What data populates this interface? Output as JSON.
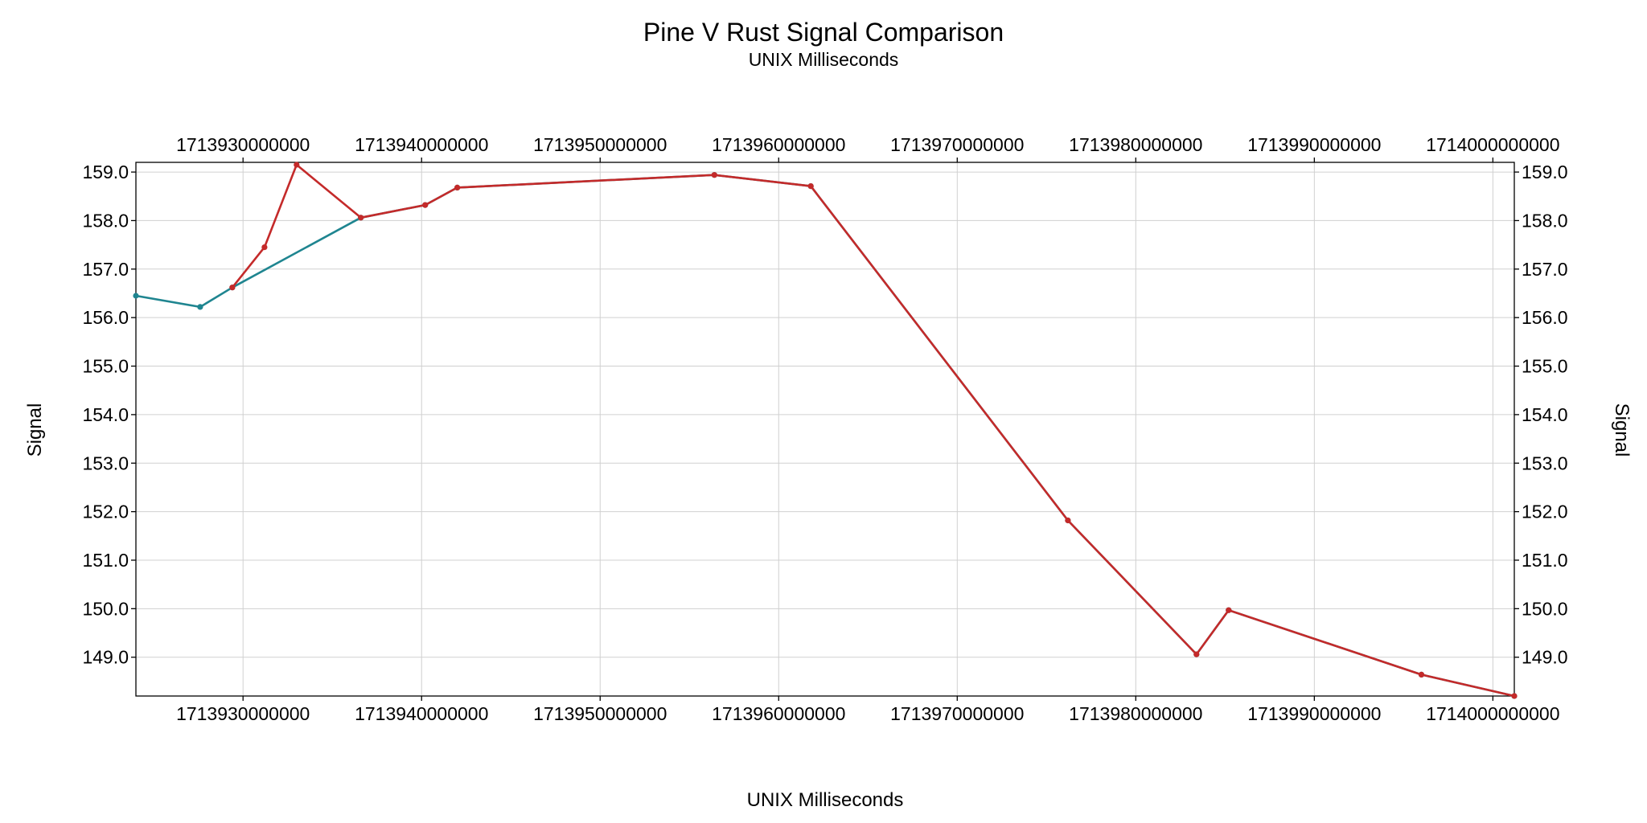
{
  "chart_data": {
    "type": "line",
    "title": "Pine V Rust Signal Comparison",
    "subtitle": "UNIX Milliseconds",
    "xlabel": "UNIX Milliseconds",
    "ylabel_left": "Signal",
    "ylabel_right": "Signal",
    "xlim": [
      1713924000000,
      1714001200000
    ],
    "ylim": [
      148.2,
      159.2
    ],
    "x_ticks": [
      1713930000000,
      1713940000000,
      1713950000000,
      1713960000000,
      1713970000000,
      1713980000000,
      1713990000000,
      1714000000000
    ],
    "x_tick_labels": [
      "1713930000000",
      "1713940000000",
      "1713950000000",
      "1713960000000",
      "1713970000000",
      "1713980000000",
      "1713990000000",
      "1714000000000"
    ],
    "y_ticks": [
      149,
      150,
      151,
      152,
      153,
      154,
      155,
      156,
      157,
      158,
      159
    ],
    "y_tick_labels": [
      "149.0",
      "150.0",
      "151.0",
      "152.0",
      "153.0",
      "154.0",
      "155.0",
      "156.0",
      "157.0",
      "158.0",
      "159.0"
    ],
    "grid": true,
    "legend": "none",
    "series": [
      {
        "color": "#1f8590",
        "x": [
          1713924000000,
          1713927600000,
          1713929400000,
          1713936600000,
          1713940200000,
          1713942000000,
          1713956400000,
          1713961800000,
          1713976200000,
          1713983400000,
          1713985200000,
          1713996000000,
          1714001200000
        ],
        "y": [
          156.45,
          156.22,
          156.62,
          158.06,
          158.32,
          158.68,
          158.94,
          158.71,
          151.82,
          149.06,
          149.97,
          148.64,
          148.2
        ]
      },
      {
        "color": "#c42a2a",
        "x": [
          1713929400000,
          1713931200000,
          1713933000000,
          1713936600000,
          1713940200000,
          1713942000000,
          1713956400000,
          1713961800000,
          1713976200000,
          1713983400000,
          1713985200000,
          1713996000000,
          1714001200000
        ],
        "y": [
          156.62,
          157.45,
          159.15,
          158.06,
          158.32,
          158.68,
          158.94,
          158.71,
          151.82,
          149.06,
          149.97,
          148.64,
          148.2
        ]
      }
    ]
  }
}
